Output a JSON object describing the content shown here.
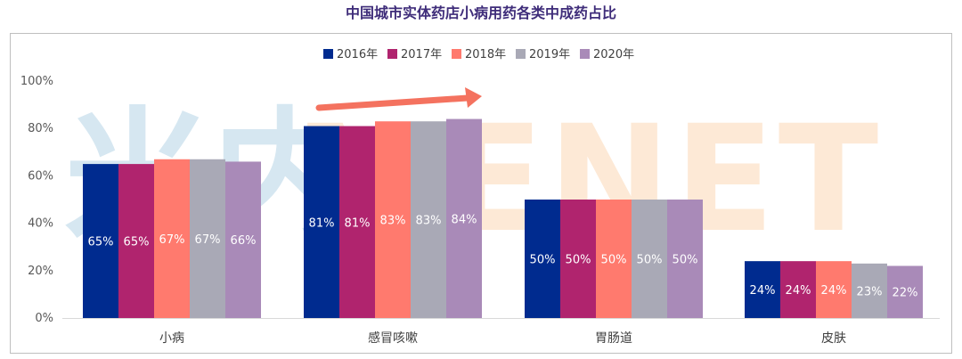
{
  "chart_data": {
    "type": "bar",
    "title": "中国城市实体药店小病用药各类中成药占比",
    "categories": [
      "小病",
      "感冒咳嗽",
      "胃肠道",
      "皮肤"
    ],
    "series": [
      {
        "name": "2016年",
        "color": "#002b8f",
        "values": [
          65,
          81,
          50,
          24
        ],
        "labels": [
          "65%",
          "81%",
          "50%",
          "24%"
        ]
      },
      {
        "name": "2017年",
        "color": "#b0246e",
        "values": [
          65,
          81,
          50,
          24
        ],
        "labels": [
          "65%",
          "81%",
          "50%",
          "24%"
        ]
      },
      {
        "name": "2018年",
        "color": "#ff7a6e",
        "values": [
          67,
          83,
          50,
          24
        ],
        "labels": [
          "67%",
          "83%",
          "50%",
          "24%"
        ]
      },
      {
        "name": "2019年",
        "color": "#a9a9b6",
        "values": [
          67,
          83,
          50,
          23
        ],
        "labels": [
          "67%",
          "83%",
          "50%",
          "23%"
        ]
      },
      {
        "name": "2020年",
        "color": "#a98ab8",
        "values": [
          66,
          84,
          50,
          22
        ],
        "labels": [
          "66%",
          "84%",
          "50%",
          "22%"
        ]
      }
    ],
    "y_ticks": [
      "0%",
      "20%",
      "40%",
      "60%",
      "80%",
      "100%"
    ],
    "ylim": [
      0,
      100
    ],
    "legend_position": "top",
    "grid": false,
    "annotation": {
      "type": "arrow",
      "color": "#f4725f",
      "over_category": "感冒咳嗽"
    }
  },
  "watermark": {
    "text": "米内MENET",
    "color_left": "#d6e7f1",
    "color_right": "#fde9d6"
  }
}
